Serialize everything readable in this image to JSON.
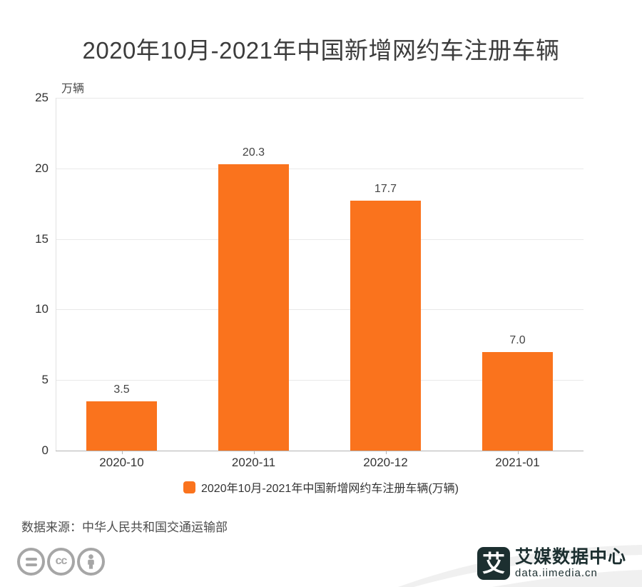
{
  "title": "2020年10月-2021年中国新增网约车注册车辆",
  "unit_label": "万辆",
  "chart_data": {
    "type": "bar",
    "title": "2020年10月-2021年中国新增网约车注册车辆",
    "ylabel": "万辆",
    "categories": [
      "2020-10",
      "2020-11",
      "2020-12",
      "2021-01"
    ],
    "values": [
      3.5,
      20.3,
      17.7,
      7.0
    ],
    "value_labels": [
      "3.5",
      "20.3",
      "17.7",
      "7.0"
    ],
    "ylim": [
      0,
      25
    ],
    "yticks": [
      0,
      5,
      10,
      15,
      20,
      25
    ],
    "grid": true,
    "legend_entries": [
      "2020年10月-2021年中国新增网约车注册车辆(万辆)"
    ],
    "legend_position": "bottom",
    "bar_color": "#fa731d"
  },
  "legend": {
    "label": "2020年10月-2021年中国新增网约车注册车辆(万辆)"
  },
  "source": "数据来源：中华人民共和国交通运输部",
  "footer": {
    "license_icons": [
      "equals-icon",
      "cc-icon",
      "attribution-person-icon"
    ],
    "brand_glyph": "艾",
    "brand_name": "艾媒数据中心",
    "brand_url": "data.iimedia.cn"
  },
  "colors": {
    "accent_orange": "#fa731d",
    "brand_dark": "#1c2f30",
    "grid_gray": "#e9e9e9",
    "axis_gray": "#b3b3b3",
    "license_gray": "#a6a6a6",
    "swoosh_gray": "#f0f0f0"
  }
}
